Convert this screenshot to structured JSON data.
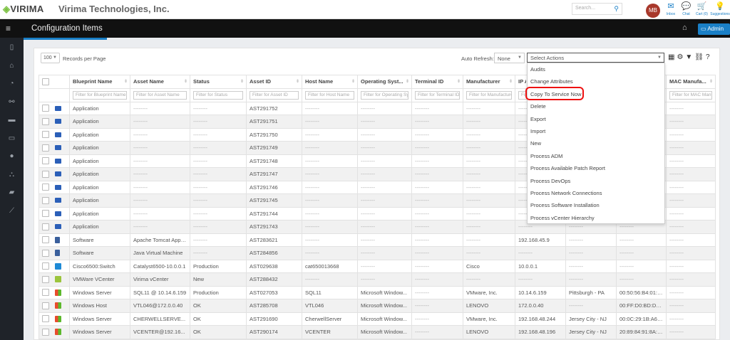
{
  "header": {
    "logo": "VIRIMA",
    "company": "Virima Technologies, Inc.",
    "search_placeholder": "Search...",
    "avatar": "MB",
    "icons": [
      {
        "name": "inbox",
        "label": "Inbox",
        "glyph": "✉"
      },
      {
        "name": "chat",
        "label": "Chat",
        "glyph": "💬"
      },
      {
        "name": "cart",
        "label": "Cart (0)",
        "glyph": "🛒"
      },
      {
        "name": "suggestions",
        "label": "Suggestions",
        "glyph": "💡"
      }
    ]
  },
  "nav": {
    "title": "Configuration Items",
    "admin_label": "Admin"
  },
  "sidebar": [
    "tablet",
    "home",
    "dashboard",
    "binoculars",
    "card",
    "monitor",
    "user",
    "sitemap",
    "book",
    "chart"
  ],
  "toolbar": {
    "records": "100",
    "records_label": "Records per Page",
    "auto_refresh_label": "Auto Refresh:",
    "auto_refresh": "None",
    "actions_placeholder": "Select Actions"
  },
  "actions_menu": [
    "Audits",
    "Change Attributes",
    "Copy To Service Now",
    "Delete",
    "Export",
    "Import",
    "New",
    "Process ADM",
    "Process Available Patch Report",
    "Process DevOps",
    "Process Network Connections",
    "Process Software Installation",
    "Process vCenter Hierarchy"
  ],
  "highlight_color": "#e11111",
  "table": {
    "columns": [
      "Blueprint Name",
      "Asset Name",
      "Status",
      "Asset ID",
      "Host Name",
      "Operating Syst...",
      "Terminal ID",
      "Manufacturer",
      "IP A...",
      "",
      "",
      "MAC Manufa..."
    ],
    "filters": [
      "Filter for Blueprint Name",
      "Filter for Asset Name",
      "Filter for Status",
      "Filter for Asset ID",
      "Filter for Host Name",
      "Filter for Operating System",
      "Filter for Terminal ID",
      "Filter for Manufacturer",
      "Filter",
      "",
      "",
      "Filter for MAC Manufacturer"
    ],
    "rows": [
      {
        "icon": "app",
        "cells": [
          "Application",
          "--------",
          "--------",
          "AST291752",
          "--------",
          "--------",
          "--------",
          "--------",
          "--------",
          "--------",
          "--------",
          "--------"
        ]
      },
      {
        "icon": "app",
        "cells": [
          "Application",
          "--------",
          "--------",
          "AST291751",
          "--------",
          "--------",
          "--------",
          "--------",
          "--------",
          "--------",
          "--------",
          "--------"
        ]
      },
      {
        "icon": "app",
        "cells": [
          "Application",
          "--------",
          "--------",
          "AST291750",
          "--------",
          "--------",
          "--------",
          "--------",
          "--------",
          "--------",
          "--------",
          "--------"
        ]
      },
      {
        "icon": "app",
        "cells": [
          "Application",
          "--------",
          "--------",
          "AST291749",
          "--------",
          "--------",
          "--------",
          "--------",
          "--------",
          "--------",
          "--------",
          "--------"
        ]
      },
      {
        "icon": "app",
        "cells": [
          "Application",
          "--------",
          "--------",
          "AST291748",
          "--------",
          "--------",
          "--------",
          "--------",
          "--------",
          "--------",
          "--------",
          "--------"
        ]
      },
      {
        "icon": "app",
        "cells": [
          "Application",
          "--------",
          "--------",
          "AST291747",
          "--------",
          "--------",
          "--------",
          "--------",
          "--------",
          "--------",
          "--------",
          "--------"
        ]
      },
      {
        "icon": "app",
        "cells": [
          "Application",
          "--------",
          "--------",
          "AST291746",
          "--------",
          "--------",
          "--------",
          "--------",
          "--------",
          "--------",
          "--------",
          "--------"
        ]
      },
      {
        "icon": "app",
        "cells": [
          "Application",
          "--------",
          "--------",
          "AST291745",
          "--------",
          "--------",
          "--------",
          "--------",
          "--------",
          "--------",
          "--------",
          "--------"
        ]
      },
      {
        "icon": "app",
        "cells": [
          "Application",
          "--------",
          "--------",
          "AST291744",
          "--------",
          "--------",
          "--------",
          "--------",
          "--------",
          "--------",
          "--------",
          "--------"
        ]
      },
      {
        "icon": "app",
        "cells": [
          "Application",
          "--------",
          "--------",
          "AST291743",
          "--------",
          "--------",
          "--------",
          "--------",
          "--------",
          "--------",
          "--------",
          "--------"
        ]
      },
      {
        "icon": "sw",
        "cells": [
          "Software",
          "Apache Tomcat Appli...",
          "--------",
          "AST283621",
          "--------",
          "--------",
          "--------",
          "--------",
          "192.168.45.9",
          "--------",
          "--------",
          "--------"
        ]
      },
      {
        "icon": "sw",
        "cells": [
          "Software",
          "Java Virtual Machine",
          "--------",
          "AST284856",
          "--------",
          "--------",
          "--------",
          "--------",
          "--------",
          "--------",
          "--------",
          "--------"
        ]
      },
      {
        "icon": "cisco",
        "cells": [
          "Cisco6500:Switch",
          "Catalyst6500-10.0.0.1",
          "Production",
          "AST029638",
          "cat650013668",
          "--------",
          "--------",
          "Cisco",
          "10.0.0.1",
          "--------",
          "--------",
          "--------"
        ]
      },
      {
        "icon": "vm",
        "cells": [
          "VMWare VCenter",
          "Virima vCenter",
          "New",
          "AST288432",
          "--------",
          "--------",
          "--------",
          "--------",
          "--------",
          "--------",
          "--------",
          "--------"
        ]
      },
      {
        "icon": "win",
        "cells": [
          "Windows Server",
          "SQL11 @ 10.14.6.159",
          "Production",
          "AST027053",
          "SQL11",
          "Microsoft Window...",
          "--------",
          "VMware, Inc.",
          "10.14.6.159",
          "Pittsburgh - PA",
          "00:50:56:B4:01:3E",
          "--------"
        ]
      },
      {
        "icon": "win",
        "cells": [
          "Windows Host",
          "VTL046@172.0.0.40",
          "OK",
          "AST285708",
          "VTL046",
          "Microsoft Window...",
          "--------",
          "LENOVO",
          "172.0.0.40",
          "--------",
          "00:FF:D0:BD:D3...",
          "--------"
        ]
      },
      {
        "icon": "win",
        "cells": [
          "Windows Server",
          "CHERWELLSERVE...",
          "OK",
          "AST291690",
          "CherwellServer",
          "Microsoft Window...",
          "--------",
          "VMware, Inc.",
          "192.168.48.244",
          "Jersey City - NJ",
          "00:0C:29:1B:A6:65",
          "--------"
        ]
      },
      {
        "icon": "win",
        "cells": [
          "Windows Server",
          "VCENTER@192.16...",
          "OK",
          "AST290174",
          "VCENTER",
          "Microsoft Window...",
          "--------",
          "LENOVO",
          "192.168.48.196",
          "Jersey City - NJ",
          "20:89:84:91:8A:8C",
          "--------"
        ]
      }
    ]
  }
}
